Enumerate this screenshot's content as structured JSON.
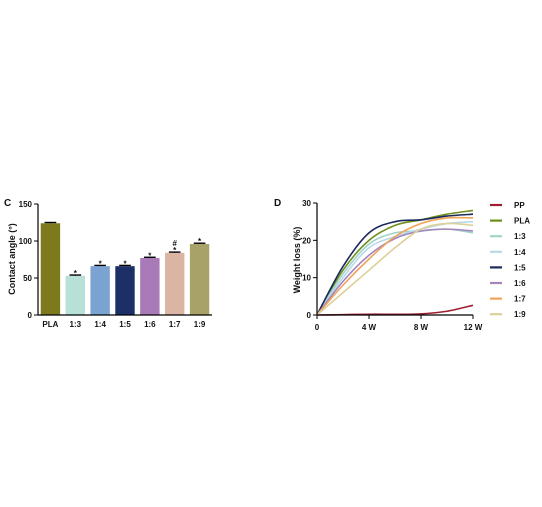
{
  "chart_data": [
    {
      "panel_label": "C",
      "type": "bar",
      "ylabel": "Contact angle (°)",
      "xlabel": "",
      "ylim": [
        0,
        150
      ],
      "yticks": [
        0,
        50,
        100,
        150
      ],
      "categories": [
        "PLA",
        "1:3",
        "1:4",
        "1:5",
        "1:6",
        "1:7",
        "1:9"
      ],
      "values": [
        124,
        53,
        66,
        66,
        77,
        84,
        96
      ],
      "errors": [
        1,
        1,
        1,
        1,
        1,
        1,
        1
      ],
      "colors": [
        "#7d7a1e",
        "#b6e0d8",
        "#7aa3d1",
        "#1c2f66",
        "#a87ab8",
        "#dbb5a3",
        "#a8a268"
      ],
      "annotations": [
        "",
        "*",
        "*",
        "*",
        "*",
        "#\n*",
        "*"
      ]
    },
    {
      "panel_label": "D",
      "type": "line",
      "ylabel": "Weight loss (%)",
      "xlabel": "",
      "ylim": [
        0,
        30
      ],
      "yticks": [
        0,
        10,
        20,
        30
      ],
      "x_ticks": [
        "0",
        "4 W",
        "8 W",
        "12 W"
      ],
      "xlim": [
        0,
        12
      ],
      "grid": false,
      "legend_position": "right",
      "series": [
        {
          "name": "PP",
          "color": "#9e1f2e",
          "x": [
            0,
            2,
            4,
            6,
            8,
            10,
            12
          ],
          "y": [
            0,
            0.1,
            0.2,
            0.2,
            0.3,
            1.0,
            2.6
          ]
        },
        {
          "name": "PLA",
          "color": "#6f8f1e",
          "x": [
            0,
            2,
            4,
            6,
            8,
            10,
            12
          ],
          "y": [
            0,
            12,
            20,
            24,
            25.5,
            27,
            28
          ]
        },
        {
          "name": "1:3",
          "color": "#9fd5c8",
          "x": [
            0,
            2,
            4,
            6,
            8,
            10,
            12
          ],
          "y": [
            0,
            11,
            19,
            22,
            22.5,
            23,
            22
          ]
        },
        {
          "name": "1:4",
          "color": "#b9d9e8",
          "x": [
            0,
            2,
            4,
            6,
            8,
            10,
            12
          ],
          "y": [
            0,
            10,
            18,
            21,
            23,
            24.5,
            25
          ]
        },
        {
          "name": "1:5",
          "color": "#1b2a5a",
          "x": [
            0,
            2,
            4,
            6,
            8,
            10,
            12
          ],
          "y": [
            0,
            13,
            22,
            25,
            25.5,
            26.5,
            27
          ]
        },
        {
          "name": "1:6",
          "color": "#a583bd",
          "x": [
            0,
            2,
            4,
            6,
            8,
            10,
            12
          ],
          "y": [
            0,
            9,
            16,
            20.5,
            22.5,
            23,
            22.5
          ]
        },
        {
          "name": "1:7",
          "color": "#f0a35a",
          "x": [
            0,
            2,
            4,
            6,
            8,
            10,
            12
          ],
          "y": [
            0,
            8,
            15,
            21,
            24.5,
            26,
            26
          ]
        },
        {
          "name": "1:9",
          "color": "#dccf98",
          "x": [
            0,
            2,
            4,
            6,
            8,
            10,
            12
          ],
          "y": [
            0,
            6,
            12,
            18,
            23,
            24.5,
            24
          ]
        }
      ]
    }
  ]
}
